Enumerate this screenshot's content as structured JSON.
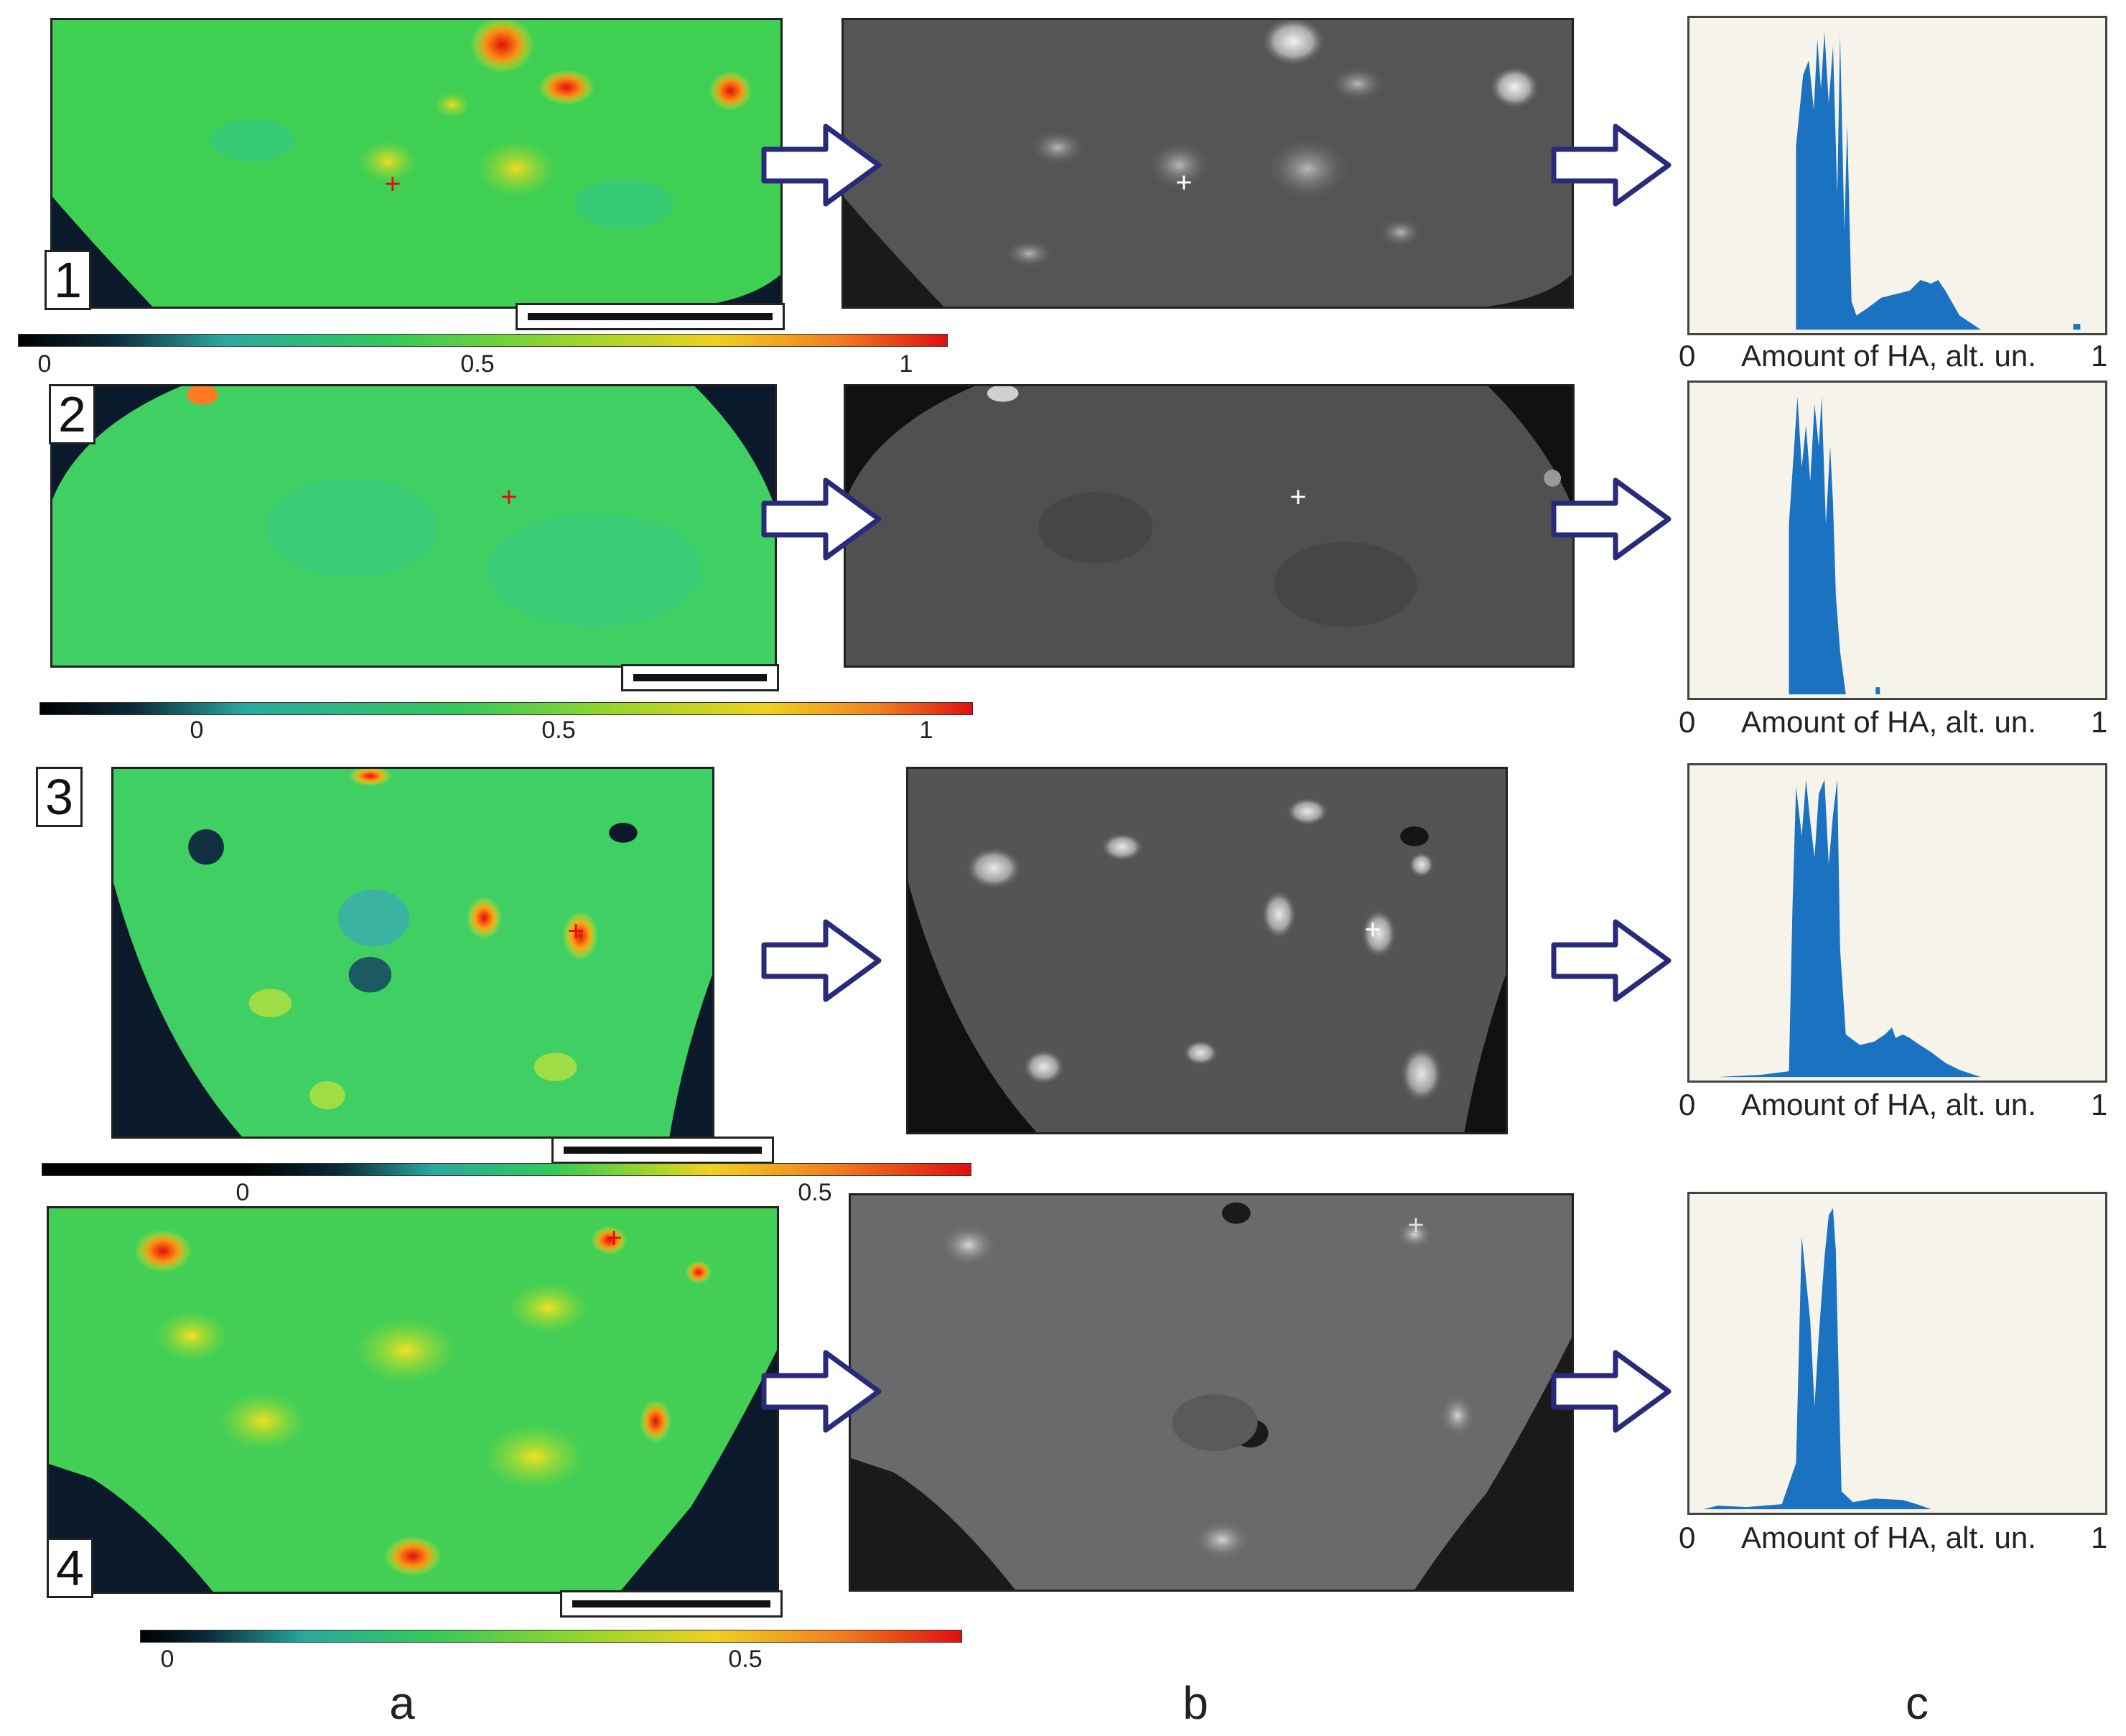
{
  "panels": [
    {
      "number": "1",
      "scale_labels": [
        "0",
        "0.5",
        "1"
      ],
      "hist_left": "0",
      "hist_axis": "Amount of HA, alt. un.",
      "hist_right": "1"
    },
    {
      "number": "2",
      "scale_labels": [
        "0",
        "0.5",
        "1"
      ],
      "hist_left": "0",
      "hist_axis": "Amount of HA, alt. un.",
      "hist_right": "1"
    },
    {
      "number": "3",
      "scale_labels": [
        "0",
        "0.5"
      ],
      "hist_left": "0",
      "hist_axis": "Amount of HA, alt. un.",
      "hist_right": "1"
    },
    {
      "number": "4",
      "scale_labels": [
        "0",
        "0.5"
      ],
      "hist_left": "0",
      "hist_axis": "Amount of HA, alt. un.",
      "hist_right": "1"
    }
  ],
  "columns": {
    "a": "a",
    "b": "b",
    "c": "c"
  },
  "colors": {
    "map_green": "#33cc55",
    "map_background": "#0a1a2a",
    "hot_red": "#e02010",
    "gray_map": "#5a5a5a",
    "arrow_stroke": "#2a2a7a",
    "hist_bar": "#1a72c0",
    "hist_bg": "#f6f3ea"
  }
}
